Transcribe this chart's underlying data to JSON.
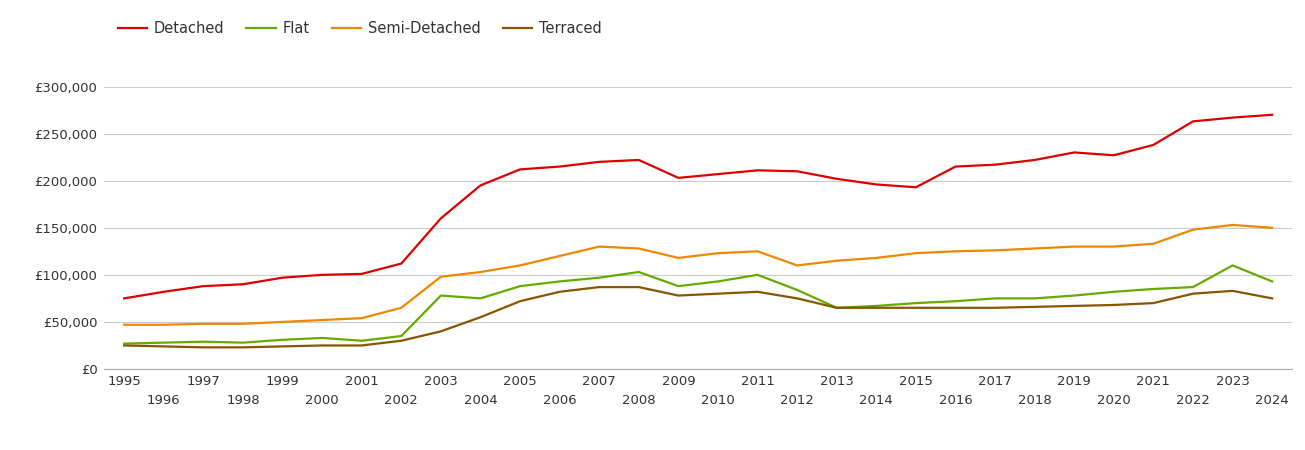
{
  "years": [
    1995,
    1996,
    1997,
    1998,
    1999,
    2000,
    2001,
    2002,
    2003,
    2004,
    2005,
    2006,
    2007,
    2008,
    2009,
    2010,
    2011,
    2012,
    2013,
    2014,
    2015,
    2016,
    2017,
    2018,
    2019,
    2020,
    2021,
    2022,
    2023,
    2024
  ],
  "detached": [
    75000,
    82000,
    88000,
    90000,
    97000,
    100000,
    101000,
    112000,
    160000,
    195000,
    212000,
    215000,
    220000,
    222000,
    203000,
    207000,
    211000,
    210000,
    202000,
    196000,
    193000,
    215000,
    217000,
    222000,
    230000,
    227000,
    238000,
    263000,
    267000,
    270000
  ],
  "flat": [
    27000,
    28000,
    29000,
    28000,
    31000,
    33000,
    30000,
    35000,
    78000,
    75000,
    88000,
    93000,
    97000,
    103000,
    88000,
    93000,
    100000,
    84000,
    65000,
    67000,
    70000,
    72000,
    75000,
    75000,
    78000,
    82000,
    85000,
    87000,
    110000,
    93000
  ],
  "semi_detached": [
    47000,
    47000,
    48000,
    48000,
    50000,
    52000,
    54000,
    65000,
    98000,
    103000,
    110000,
    120000,
    130000,
    128000,
    118000,
    123000,
    125000,
    110000,
    115000,
    118000,
    123000,
    125000,
    126000,
    128000,
    130000,
    130000,
    133000,
    148000,
    153000,
    150000
  ],
  "terraced": [
    25000,
    24000,
    23000,
    23000,
    24000,
    25000,
    25000,
    30000,
    40000,
    55000,
    72000,
    82000,
    87000,
    87000,
    78000,
    80000,
    82000,
    75000,
    65000,
    65000,
    65000,
    65000,
    65000,
    66000,
    67000,
    68000,
    70000,
    80000,
    83000,
    75000
  ],
  "colors": {
    "detached": "#dd0000",
    "flat": "#66aa00",
    "semi_detached": "#ee8800",
    "terraced": "#885500"
  },
  "yticks": [
    0,
    50000,
    100000,
    150000,
    200000,
    250000,
    300000
  ],
  "ylim": [
    0,
    325000
  ],
  "background_color": "#ffffff",
  "grid_color": "#cccccc",
  "tick_fontsize": 9.5,
  "legend_fontsize": 10.5
}
